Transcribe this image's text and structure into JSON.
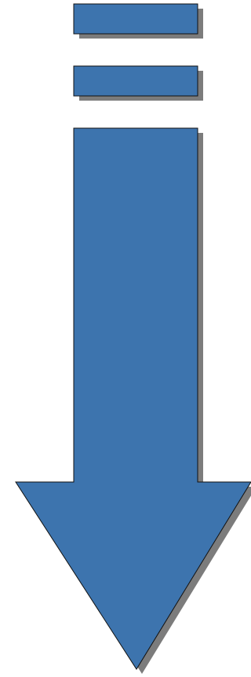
{
  "colors": {
    "fill": "#3d74ae",
    "stroke": "#111111",
    "shadow": "#7c7c7c",
    "background": "#ffffff"
  },
  "icon": "down-arrow-icon"
}
